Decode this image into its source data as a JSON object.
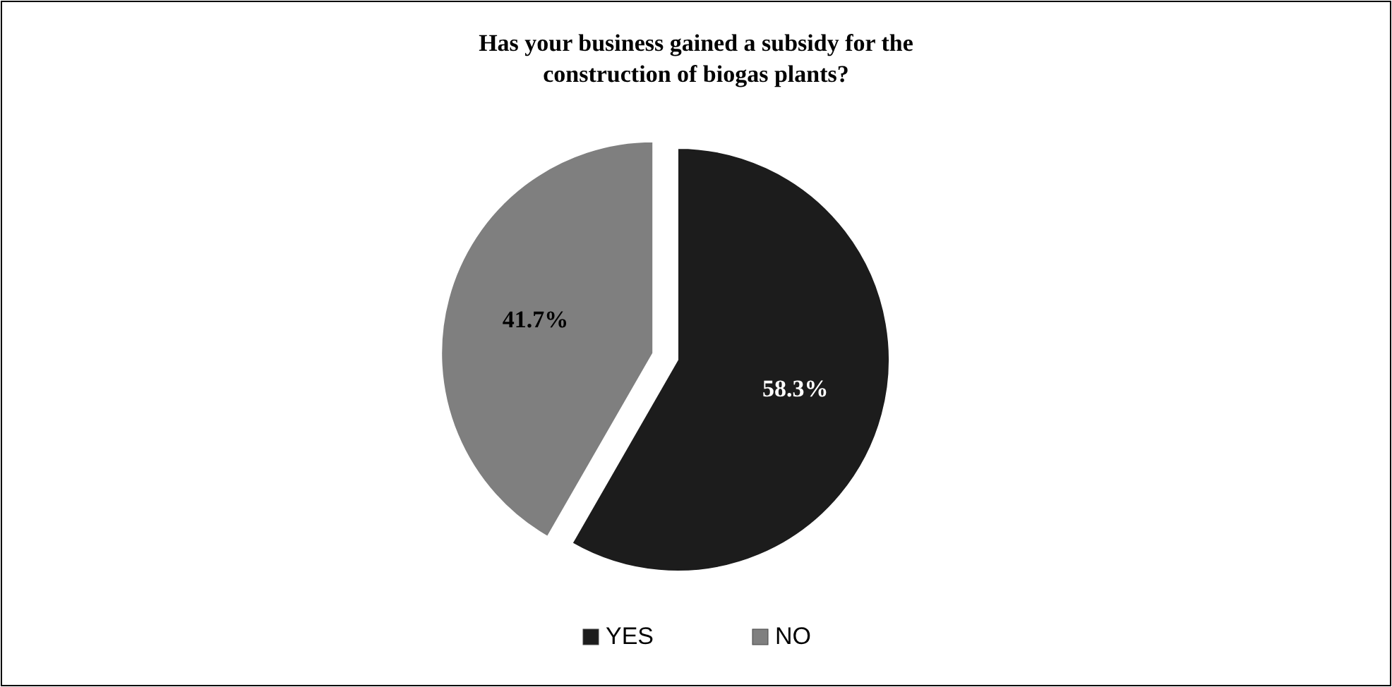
{
  "chart_data": {
    "type": "pie",
    "title": "Has your business gained a subsidy for the\nconstruction of biogas plants?",
    "categories": [
      "YES",
      "NO"
    ],
    "values": [
      58.3,
      41.7
    ],
    "value_labels": [
      "58.3%",
      "41.7%"
    ],
    "colors": [
      "#1c1c1c",
      "#7f7f7f"
    ],
    "legend": "bottom"
  }
}
